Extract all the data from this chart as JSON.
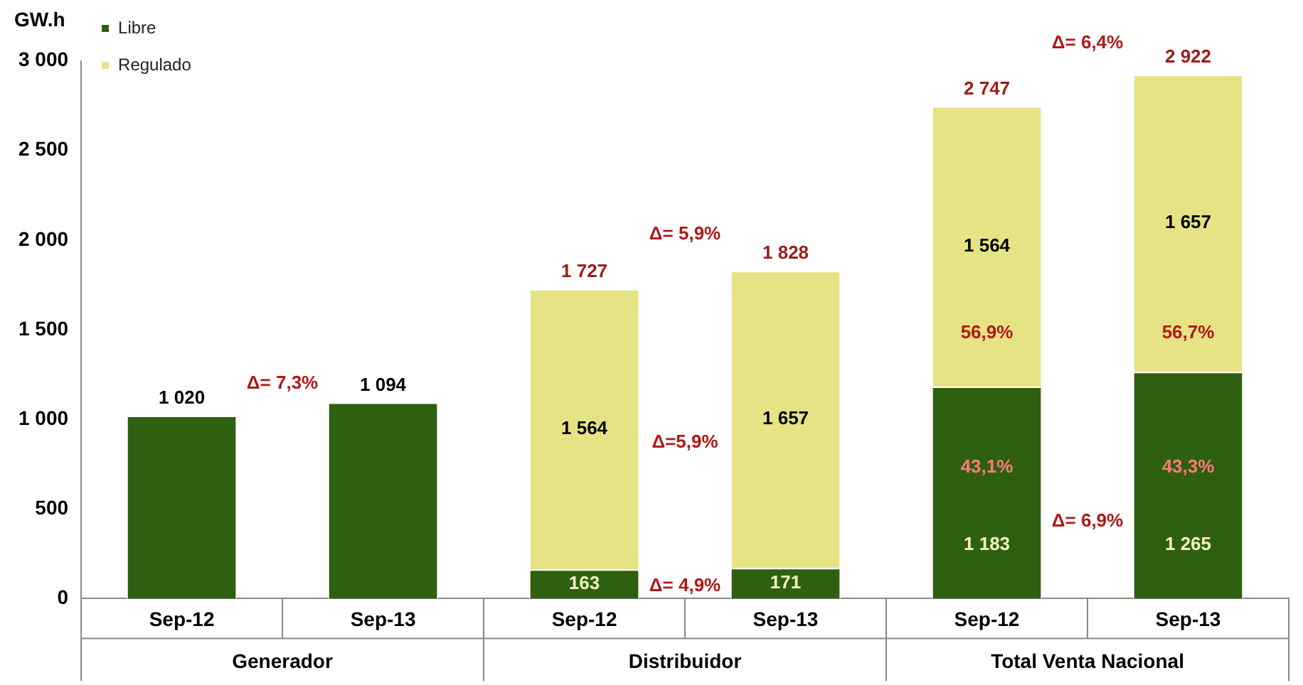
{
  "chart_data": {
    "type": "bar",
    "stacked": true,
    "ylabel": "GW.h",
    "legend": "top left",
    "categories": [
      "Sep-12",
      "Sep-13",
      "Sep-12",
      "Sep-13",
      "Sep-12",
      "Sep-13"
    ],
    "series": [
      {
        "name": "Libre",
        "color": "#2f5f10",
        "values": [
          1020,
          1094,
          163,
          171,
          1183,
          1265
        ],
        "value_labels": [
          null,
          null,
          "163",
          "171",
          "1 183",
          "1 265"
        ]
      },
      {
        "name": "Regulado",
        "color": "#e6e385",
        "values": [
          null,
          null,
          1564,
          1657,
          1564,
          1657
        ],
        "value_labels": [
          null,
          null,
          "1 564",
          "1 657",
          "1 564",
          "1 657"
        ]
      }
    ],
    "totals": [
      "1 020",
      "1 094",
      "1 727",
      "1 828",
      "2 747",
      "2 922"
    ],
    "ylim": [
      0,
      3000
    ],
    "yticks": [
      {
        "value": 0,
        "label": "0"
      },
      {
        "value": 500,
        "label": "500"
      },
      {
        "value": 1000,
        "label": "1 000"
      },
      {
        "value": 1500,
        "label": "1 500"
      },
      {
        "value": 2000,
        "label": "2 000"
      },
      {
        "value": 2500,
        "label": "2 500"
      },
      {
        "value": 3000,
        "label": "3 000"
      }
    ],
    "grid": false,
    "annotations": [
      "Δ= 7,3%",
      "Δ= 5,9%",
      "Δ=5,9%",
      "Δ= 4,9%",
      "Δ= 6,4%",
      "Δ= 6,9%",
      "56,9%",
      "56,7%",
      "43,1%",
      "43,3%",
      "Generador",
      "Distribuidor",
      "Total Venta Nacional"
    ]
  }
}
